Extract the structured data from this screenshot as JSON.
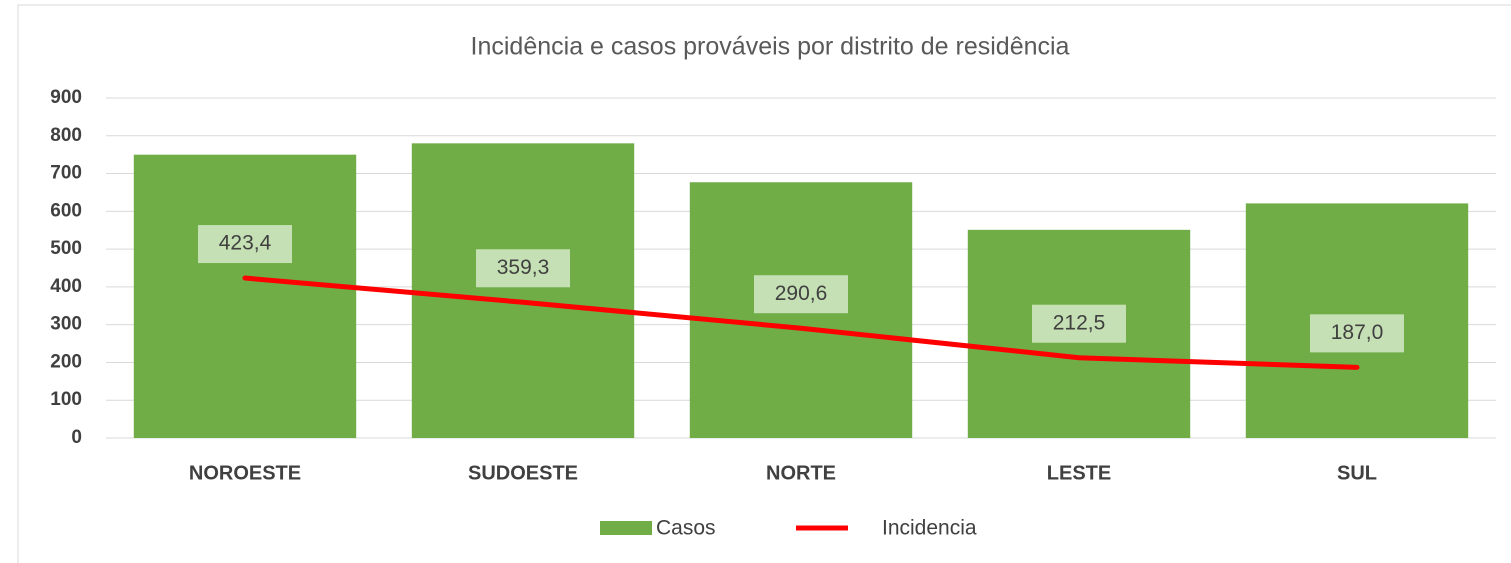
{
  "chart_data": {
    "type": "bar",
    "title": "Incidência e casos prováveis por distrito de residência",
    "categories": [
      "NOROESTE",
      "SUDOESTE",
      "NORTE",
      "LESTE",
      "SUL"
    ],
    "series": [
      {
        "name": "Casos",
        "type": "bar",
        "color": "#70ad47",
        "values": [
          750,
          780,
          677,
          551,
          621
        ]
      },
      {
        "name": "Incidencia",
        "type": "line",
        "color": "#ff0000",
        "values": [
          423.4,
          359.3,
          290.6,
          212.5,
          187.0
        ],
        "value_labels": [
          "423,4",
          "359,3",
          "290,6",
          "212,5",
          "187,0"
        ]
      }
    ],
    "ylim": [
      0,
      900
    ],
    "yticks": [
      0,
      100,
      200,
      300,
      400,
      500,
      600,
      700,
      800,
      900
    ],
    "grid": true,
    "legend": "bottom"
  }
}
